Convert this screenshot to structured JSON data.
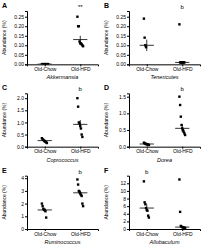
{
  "chart_data": [
    {
      "type": "strip",
      "panel_label": "A",
      "xlabel": "Akkermansia",
      "ylabel": "Abundance (%)",
      "categories": [
        "Old-Chow",
        "Old-HFD"
      ],
      "values": [
        [
          0.001,
          0.001,
          0.001,
          0.001,
          0.001,
          0.001,
          0.001,
          0.001,
          0.001,
          0.001
        ],
        [
          0.25,
          0.2,
          0.2,
          0.12,
          0.11,
          0.11,
          0.105,
          0.1,
          0.095
        ]
      ],
      "means": [
        0.001,
        0.13
      ],
      "errors": [
        0.0005,
        0.02
      ],
      "ylim": [
        0.0,
        0.28
      ],
      "yticks": [
        {
          "value": 0.0,
          "label": "0.00"
        },
        0.05,
        {
          "value": 0.1,
          "label": "0.10"
        },
        0.15,
        {
          "value": 0.2,
          "label": "0.20"
        },
        0.25
      ],
      "annotations": [
        {
          "text": "**",
          "category": "Old-HFD"
        }
      ],
      "color": "black",
      "marker": "square",
      "grid": false
    },
    {
      "type": "strip",
      "panel_label": "B",
      "xlabel": "Tenericutes",
      "ylabel": "Abundance (%)",
      "categories": [
        "Old-Chow",
        "Old-HFD"
      ],
      "values": [
        [
          0.24,
          0.14,
          0.1,
          0.09
        ],
        [
          0.21,
          0.01,
          0.01,
          0.01,
          0.01,
          0.01,
          0.01,
          0.01
        ]
      ],
      "means": [
        0.1,
        0.01
      ],
      "errors": [
        0.03,
        0.005
      ],
      "ylim": [
        0.0,
        0.28
      ],
      "yticks": [
        {
          "value": 0.0,
          "label": "0.00"
        },
        0.05,
        {
          "value": 0.1,
          "label": "0.10"
        },
        0.15,
        {
          "value": 0.2,
          "label": "0.20"
        },
        0.25
      ],
      "annotations": [
        {
          "text": "b",
          "category": "Old-HFD"
        }
      ],
      "color": "black",
      "marker": "square",
      "grid": false
    },
    {
      "type": "strip",
      "panel_label": "C",
      "xlabel": "Coprococcus",
      "ylabel": "Abundance (%)",
      "categories": [
        "Old-Chow",
        "Old-HFD"
      ],
      "values": [
        [
          0.35,
          0.3,
          0.28,
          0.25,
          0.22,
          0.2,
          0.18,
          0.15
        ],
        [
          2.0,
          1.65,
          1.0,
          0.95,
          0.85,
          0.75,
          0.5,
          0.4
        ]
      ],
      "means": [
        0.25,
        0.92
      ],
      "errors": [
        0.03,
        0.18
      ],
      "ylim": [
        0.0,
        2.2
      ],
      "yticks": [
        {
          "value": 0.0,
          "label": "0.0"
        },
        0.5,
        {
          "value": 1.0,
          "label": "1.0"
        },
        1.5,
        {
          "value": 2.0,
          "label": "2.0"
        }
      ],
      "annotations": [
        {
          "text": "b",
          "category": "Old-HFD"
        }
      ],
      "color": "black",
      "marker": "square",
      "grid": false
    },
    {
      "type": "strip",
      "panel_label": "D",
      "xlabel": "Dorea",
      "ylabel": "Abundance (%)",
      "categories": [
        "Old-Chow",
        "Old-HFD"
      ],
      "values": [
        [
          0.12,
          0.1,
          0.09,
          0.08,
          0.07,
          0.07,
          0.06,
          0.05
        ],
        [
          1.5,
          1.25,
          0.9,
          0.65,
          0.55,
          0.5,
          0.45,
          0.4,
          0.35
        ]
      ],
      "means": [
        0.08,
        0.55
      ],
      "errors": [
        0.01,
        0.12
      ],
      "ylim": [
        0.0,
        1.6
      ],
      "yticks": [
        {
          "value": 0.0,
          "label": "0.0"
        },
        0.5,
        {
          "value": 1.0,
          "label": "1.0"
        },
        1.5
      ],
      "annotations": [
        {
          "text": "b",
          "category": "Old-HFD"
        }
      ],
      "color": "black",
      "marker": "square",
      "grid": false
    },
    {
      "type": "strip",
      "panel_label": "E",
      "xlabel": "Ruminococcus",
      "ylabel": "Abundance (%)",
      "categories": [
        "Old-Chow",
        "Old-HFD"
      ],
      "values": [
        [
          2.0,
          1.8,
          1.6,
          1.5,
          1.5,
          1.4,
          0.9
        ],
        [
          3.9,
          3.5,
          3.0,
          2.9,
          2.8,
          2.7,
          2.6,
          2.0,
          1.8
        ]
      ],
      "means": [
        1.5,
        2.85
      ],
      "errors": [
        0.13,
        0.2
      ],
      "ylim": [
        0.0,
        4.2
      ],
      "yticks": [
        0,
        1,
        2,
        3,
        4
      ],
      "annotations": [
        {
          "text": "b",
          "category": "Old-HFD"
        }
      ],
      "color": "black",
      "marker": "square",
      "grid": false
    },
    {
      "type": "strip",
      "panel_label": "F",
      "xlabel": "Allobaculum",
      "ylabel": "Abundance (%)",
      "categories": [
        "Old-Chow",
        "Old-HFD"
      ],
      "values": [
        [
          12.5,
          7.0,
          6.5,
          5.5,
          5.0,
          4.8,
          3.5,
          3.0
        ],
        [
          13.0,
          4.5,
          0.8,
          0.6,
          0.5,
          0.4,
          0.3,
          0.3,
          0.3
        ]
      ],
      "means": [
        5.5,
        0.5
      ],
      "errors": [
        1.0,
        0.15
      ],
      "ylim": [
        0.0,
        14.0
      ],
      "yticks": [
        0,
        2,
        4,
        6,
        8,
        10,
        12
      ],
      "annotations": [
        {
          "text": "b",
          "category": "Old-Chow"
        }
      ],
      "color": "black",
      "marker": "square",
      "grid": false
    }
  ]
}
